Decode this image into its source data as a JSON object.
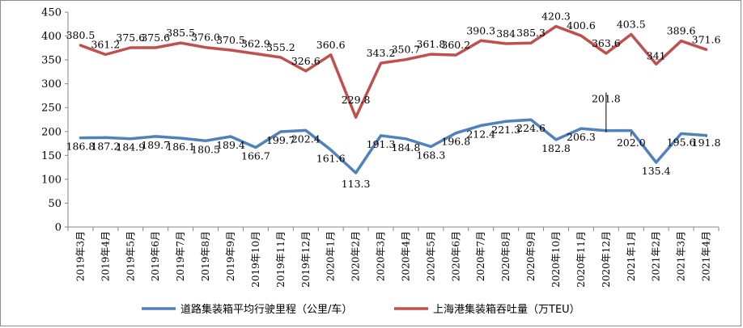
{
  "chart_data": {
    "type": "line",
    "categories": [
      "2019年3月",
      "2019年4月",
      "2019年5月",
      "2019年6月",
      "2019年7月",
      "2019年8月",
      "2019年9月",
      "2019年10月",
      "2019年11月",
      "2019年12月",
      "2020年1月",
      "2020年2月",
      "2020年3月",
      "2020年4月",
      "2020年5月",
      "2020年6月",
      "2020年7月",
      "2020年8月",
      "2020年9月",
      "2020年10月",
      "2020年11月",
      "2020年12月",
      "2021年1月",
      "2021年2月",
      "2021年3月",
      "2021年4月"
    ],
    "series": [
      {
        "name": "道路集装箱平均行驶里程（公里/车）",
        "color": "#4f81bd",
        "values": [
          186.8,
          187.2,
          184.9,
          189.7,
          186.1,
          180.5,
          189.4,
          166.7,
          199.7,
          202.4,
          161.6,
          113.3,
          191.3,
          184.8,
          168.3,
          196.8,
          212.4,
          221.3,
          224.6,
          182.8,
          206.3,
          201.8,
          202.0,
          135.4,
          195.6,
          191.8
        ],
        "labels": [
          "186.8",
          "187.2",
          "184.9",
          "189.7",
          "186.1",
          "180.5",
          "189.4",
          "166.7",
          "199.7",
          "202.4",
          "161.6",
          "113.3",
          "191.3",
          "184.8",
          "168.3",
          "196.8",
          "212.4",
          "221.3",
          "224.6",
          "182.8",
          "206.3",
          "201.8",
          "202.0",
          "135.4",
          "195.6",
          "191.8"
        ]
      },
      {
        "name": "上海港集装箱吞吐量（万TEU）",
        "color": "#c0504d",
        "values": [
          380.5,
          361.2,
          375.6,
          375.6,
          385.5,
          376.0,
          370.5,
          362.9,
          355.2,
          326.6,
          360.6,
          229.8,
          343.2,
          350.7,
          361.8,
          360.2,
          390.3,
          384.0,
          385.3,
          420.3,
          400.6,
          363.6,
          403.5,
          341,
          389.6,
          371.6
        ],
        "labels": [
          "380.5",
          "361.2",
          "375.6",
          "375.6",
          "385.5",
          "376.0",
          "370.5",
          "362.9",
          "355.2",
          "326.6",
          "360.6",
          "229.8",
          "343.2",
          "350.7",
          "361.8",
          "360.2",
          "390.3",
          "384",
          "385.3",
          "420.3",
          "400.6",
          "363.6",
          "403.5",
          "341",
          "389.6",
          "371.6"
        ]
      }
    ],
    "ylim": [
      0,
      450
    ],
    "yticks": [
      "0",
      "50",
      "100",
      "150",
      "200",
      "250",
      "300",
      "350",
      "400",
      "450"
    ],
    "grid": false,
    "legend_position": "bottom"
  }
}
